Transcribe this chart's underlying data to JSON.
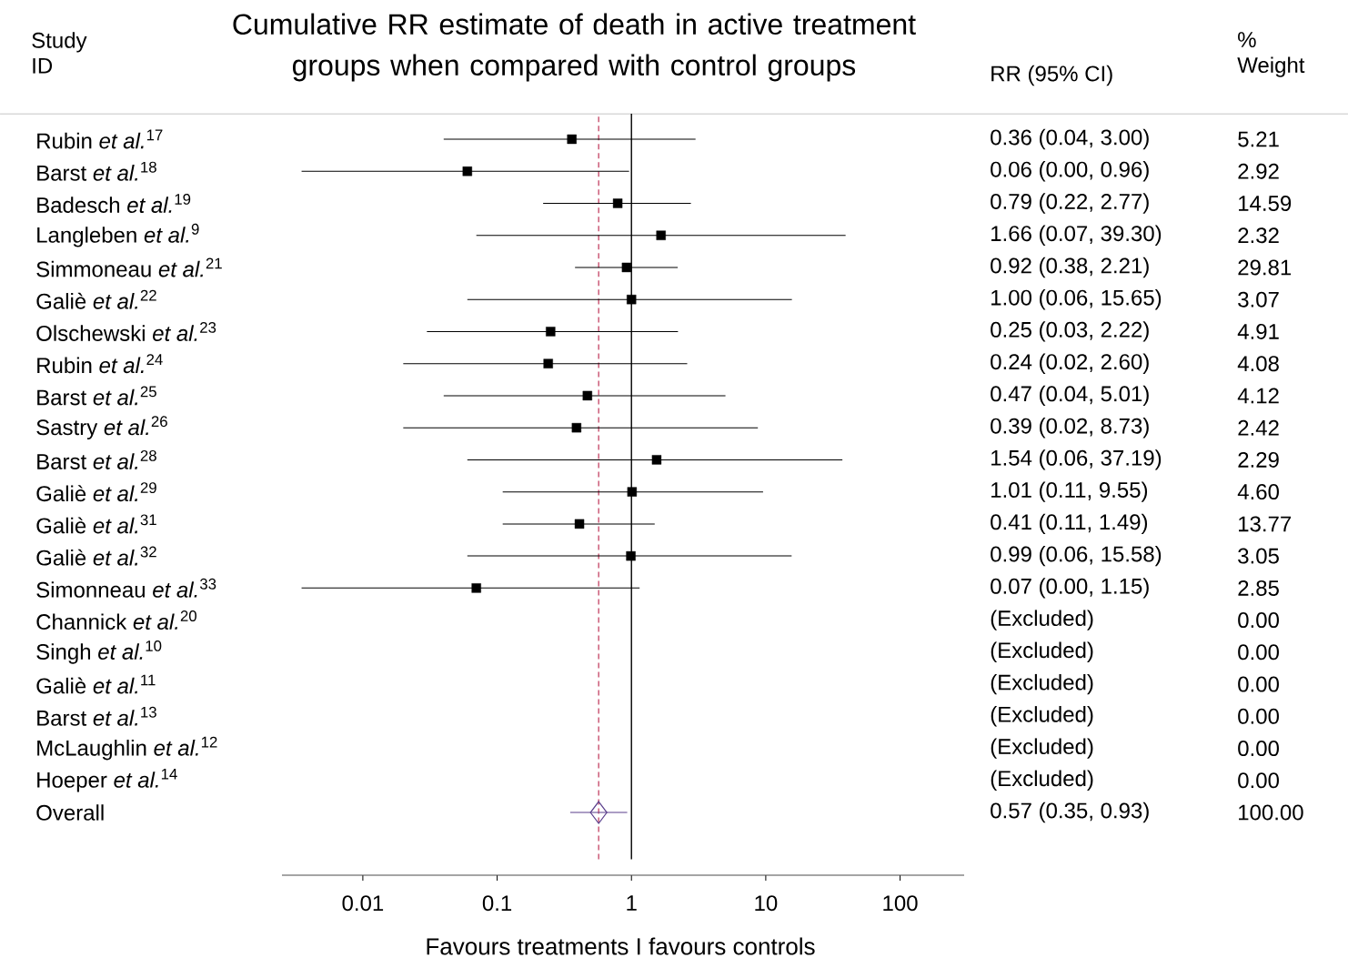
{
  "chart_data": {
    "type": "scatter",
    "orientation": "horizontal",
    "log": "x",
    "title": "Cumulative RR estimate of death in active treatment groups when compared with control groups",
    "ylabel": "Study ID",
    "xlabel": "Favours treatments I favours controls",
    "annotations": [
      "RR (95% CI)",
      "% Weight",
      "5.21",
      "2.92",
      "14.59",
      "2.32",
      "29.81",
      "3.07",
      "4.91",
      "4.08",
      "4.12",
      "2.42",
      "2.29",
      "4.60",
      "13.77",
      "3.05",
      "2.85",
      "0.00",
      "0.00",
      "0.00",
      "0.00",
      "0.00",
      "0.00",
      "100.00",
      "0.36 (0.04, 3.00)",
      "0.06 (0.00, 0.96)",
      "0.79 (0.22, 2.77)",
      "1.66 (0.07, 39.30)",
      "0.92 (0.38, 2.21)",
      "1.00 (0.06, 15.65)",
      "0.25 (0.03, 2.22)",
      "0.24 (0.02, 2.60)",
      "0.47 (0.04, 5.01)",
      "0.39 (0.02, 8.73)",
      "1.54 (0.06, 37.19)",
      "1.01 (0.11, 9.55)",
      "0.41 (0.11, 1.49)",
      "0.99 (0.06, 15.58)",
      "0.07 (0.00, 1.15)",
      "(Excluded)",
      "(Excluded)",
      "(Excluded)",
      "(Excluded)",
      "(Excluded)",
      "(Excluded)",
      "0.57 (0.35, 0.93)"
    ],
    "categories": [
      "Rubin *et al.*$^{17}$",
      "Barst *et al.*$^{18}$",
      "Badesch *et al.*$^{19}$",
      "Langleben *et al.*$^{9}$",
      "Simmoneau *et al.*$^{21}$",
      "Galiè *et al.*$^{22}$",
      "Olschewski *et al.*$^{23}$",
      "Rubin *et al.*$^{24}$",
      "Barst *et al.*$^{25}$",
      "Sastry *et al.*$^{26}$",
      "Barst *et al.*$^{28}$",
      "Galiè *et al.*$^{29}$",
      "Galiè *et al.*$^{31}$",
      "Galiè *et al.*$^{32}$",
      "Simonneau *et al.*$^{33}$",
      "Channick *et al.*$^{20}$",
      "Singh *et al.*$^{10}$",
      "Galiè *et al.*$^{11}$",
      "Barst *et al.*$^{13}$",
      "McLaughlin *et al.*$^{12}$",
      "Hoeper *et al.*$^{14}$",
      "Overall"
    ],
    "xlim": [
      0.0025,
      300
    ],
    "xticks": [
      0.01,
      0.1,
      1,
      10,
      100
    ],
    "series": [
      {
        "marker": "square",
        "color": "#000000",
        "values": [
          0.36,
          0.06,
          0.79,
          1.66,
          0.92,
          1.0,
          0.25,
          0.24,
          0.47,
          0.39,
          1.54,
          1.01,
          0.41,
          0.99,
          0.07,
          null,
          null,
          null,
          null,
          null,
          null,
          null
        ],
        "errors": [
          [
            0.04,
            3.0
          ],
          [
            0.0035,
            0.96
          ],
          [
            0.22,
            2.77
          ],
          [
            0.07,
            39.3
          ],
          [
            0.38,
            2.21
          ],
          [
            0.06,
            15.65
          ],
          [
            0.03,
            2.22
          ],
          [
            0.02,
            2.6
          ],
          [
            0.04,
            5.01
          ],
          [
            0.02,
            8.73
          ],
          [
            0.06,
            37.19
          ],
          [
            0.11,
            9.55
          ],
          [
            0.11,
            1.49
          ],
          [
            0.06,
            15.58
          ],
          [
            0.0035,
            1.15
          ],
          null,
          null,
          null,
          null,
          null,
          null,
          null
        ]
      },
      {
        "type": "scatter",
        "marker": "diamond",
        "color": "#5b3f8c",
        "values": [
          null,
          null,
          null,
          null,
          null,
          null,
          null,
          null,
          null,
          null,
          null,
          null,
          null,
          null,
          null,
          null,
          null,
          null,
          null,
          null,
          null,
          0.57
        ],
        "errors": [
          null,
          null,
          null,
          null,
          null,
          null,
          null,
          null,
          null,
          null,
          null,
          null,
          null,
          null,
          null,
          null,
          null,
          null,
          null,
          null,
          null,
          [
            0.35,
            0.93
          ]
        ]
      }
    ],
    "ref_lines": [
      {
        "axis": "x",
        "value": 1,
        "color": "#000000",
        "line_style": "solid"
      },
      {
        "axis": "x",
        "value": 0.57,
        "color": "#c8506e",
        "line_style": "dashed"
      }
    ]
  }
}
